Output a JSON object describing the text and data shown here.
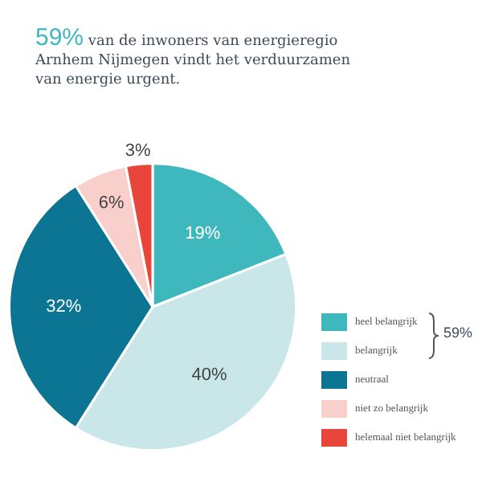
{
  "chart_data": {
    "type": "pie",
    "title": "59% van de inwoners van energieregio Arnhem Nijmegen vindt het verduurzamen van energie urgent.",
    "categories": [
      "heel belangrijk",
      "belangrijk",
      "neutraal",
      "niet zo belangrijk",
      "helemaal niet belangrijk"
    ],
    "values": [
      19,
      40,
      32,
      6,
      3
    ],
    "colors": [
      "#3fb8bd",
      "#c9e6e8",
      "#0b7593",
      "#f8cfcb",
      "#e8463a"
    ],
    "value_labels": [
      "19%",
      "40%",
      "32%",
      "6%",
      "3%"
    ],
    "legend": "right",
    "annotations": [
      "59%"
    ]
  }
}
